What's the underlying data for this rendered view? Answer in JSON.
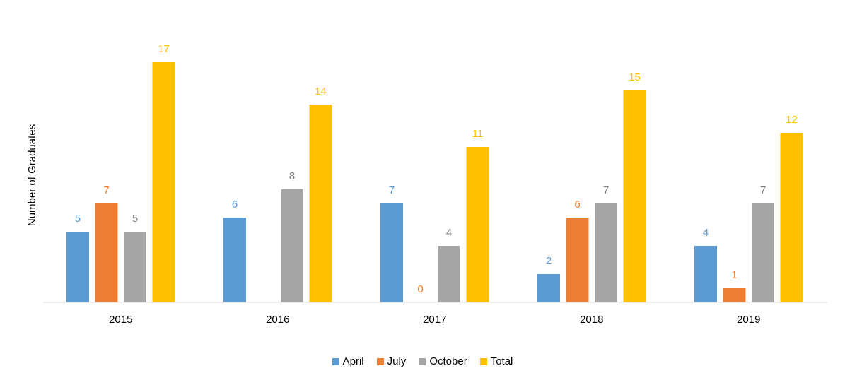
{
  "chart_data": {
    "type": "bar",
    "title": "",
    "xlabel": "",
    "ylabel": "Number of Graduates",
    "categories": [
      "2015",
      "2016",
      "2017",
      "2018",
      "2019"
    ],
    "series": [
      {
        "name": "April",
        "color": "#5B9BD5",
        "values": [
          5,
          6,
          7,
          2,
          4
        ]
      },
      {
        "name": "July",
        "color": "#ED7D31",
        "values": [
          7,
          null,
          0,
          6,
          1
        ]
      },
      {
        "name": "October",
        "color": "#A5A5A5",
        "values": [
          5,
          8,
          4,
          7,
          7
        ]
      },
      {
        "name": "Total",
        "color": "#FFC000",
        "values": [
          17,
          14,
          11,
          15,
          12
        ]
      }
    ],
    "ylim": [
      0,
      17
    ],
    "grid": false,
    "legend": "bottom"
  }
}
